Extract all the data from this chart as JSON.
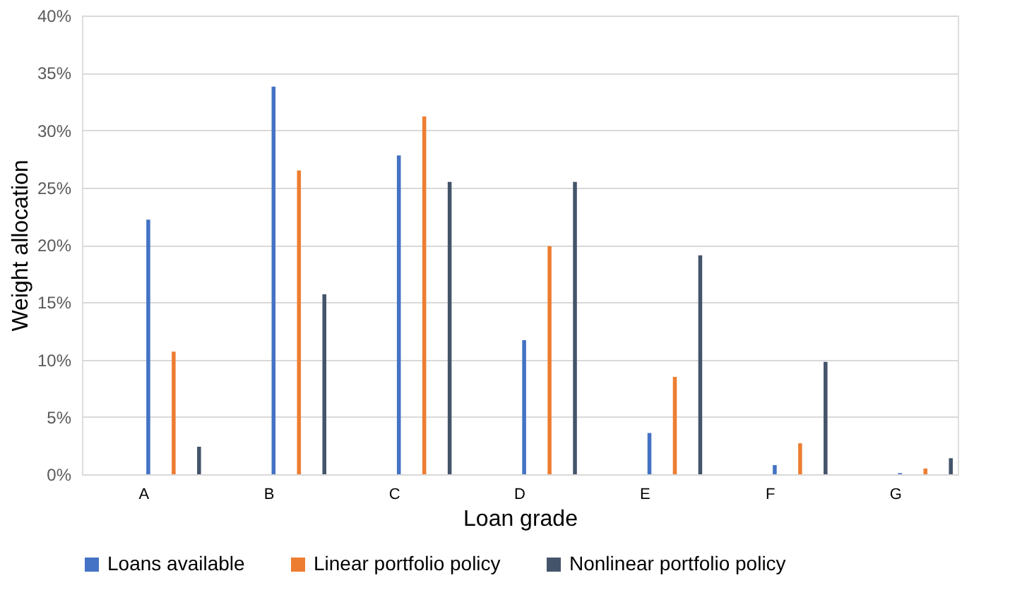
{
  "chart_data": {
    "type": "bar",
    "xlabel": "Loan grade",
    "ylabel": "Weight allocation",
    "categories": [
      "A",
      "B",
      "C",
      "D",
      "E",
      "F",
      "G"
    ],
    "series": [
      {
        "name": "Loans available",
        "color": "#4472c4",
        "values": [
          22.2,
          33.8,
          27.8,
          11.7,
          3.6,
          0.8,
          0.1
        ]
      },
      {
        "name": "Linear portfolio policy",
        "color": "#ed7d31",
        "values": [
          10.7,
          26.5,
          31.2,
          19.9,
          8.5,
          2.7,
          0.5
        ]
      },
      {
        "name": "Nonlinear portfolio policy",
        "color": "#44546a",
        "values": [
          2.4,
          15.7,
          25.5,
          25.5,
          19.1,
          9.8,
          1.4
        ]
      }
    ],
    "ylim": [
      0,
      40
    ],
    "yticks": [
      {
        "value": 0,
        "label": "0%"
      },
      {
        "value": 5,
        "label": "5%"
      },
      {
        "value": 10,
        "label": "10%"
      },
      {
        "value": 15,
        "label": "15%"
      },
      {
        "value": 20,
        "label": "20%"
      },
      {
        "value": 25,
        "label": "25%"
      },
      {
        "value": 30,
        "label": "30%"
      },
      {
        "value": 35,
        "label": "35%"
      },
      {
        "value": 40,
        "label": "40%"
      }
    ],
    "grid": "y",
    "legend": "bottom"
  }
}
